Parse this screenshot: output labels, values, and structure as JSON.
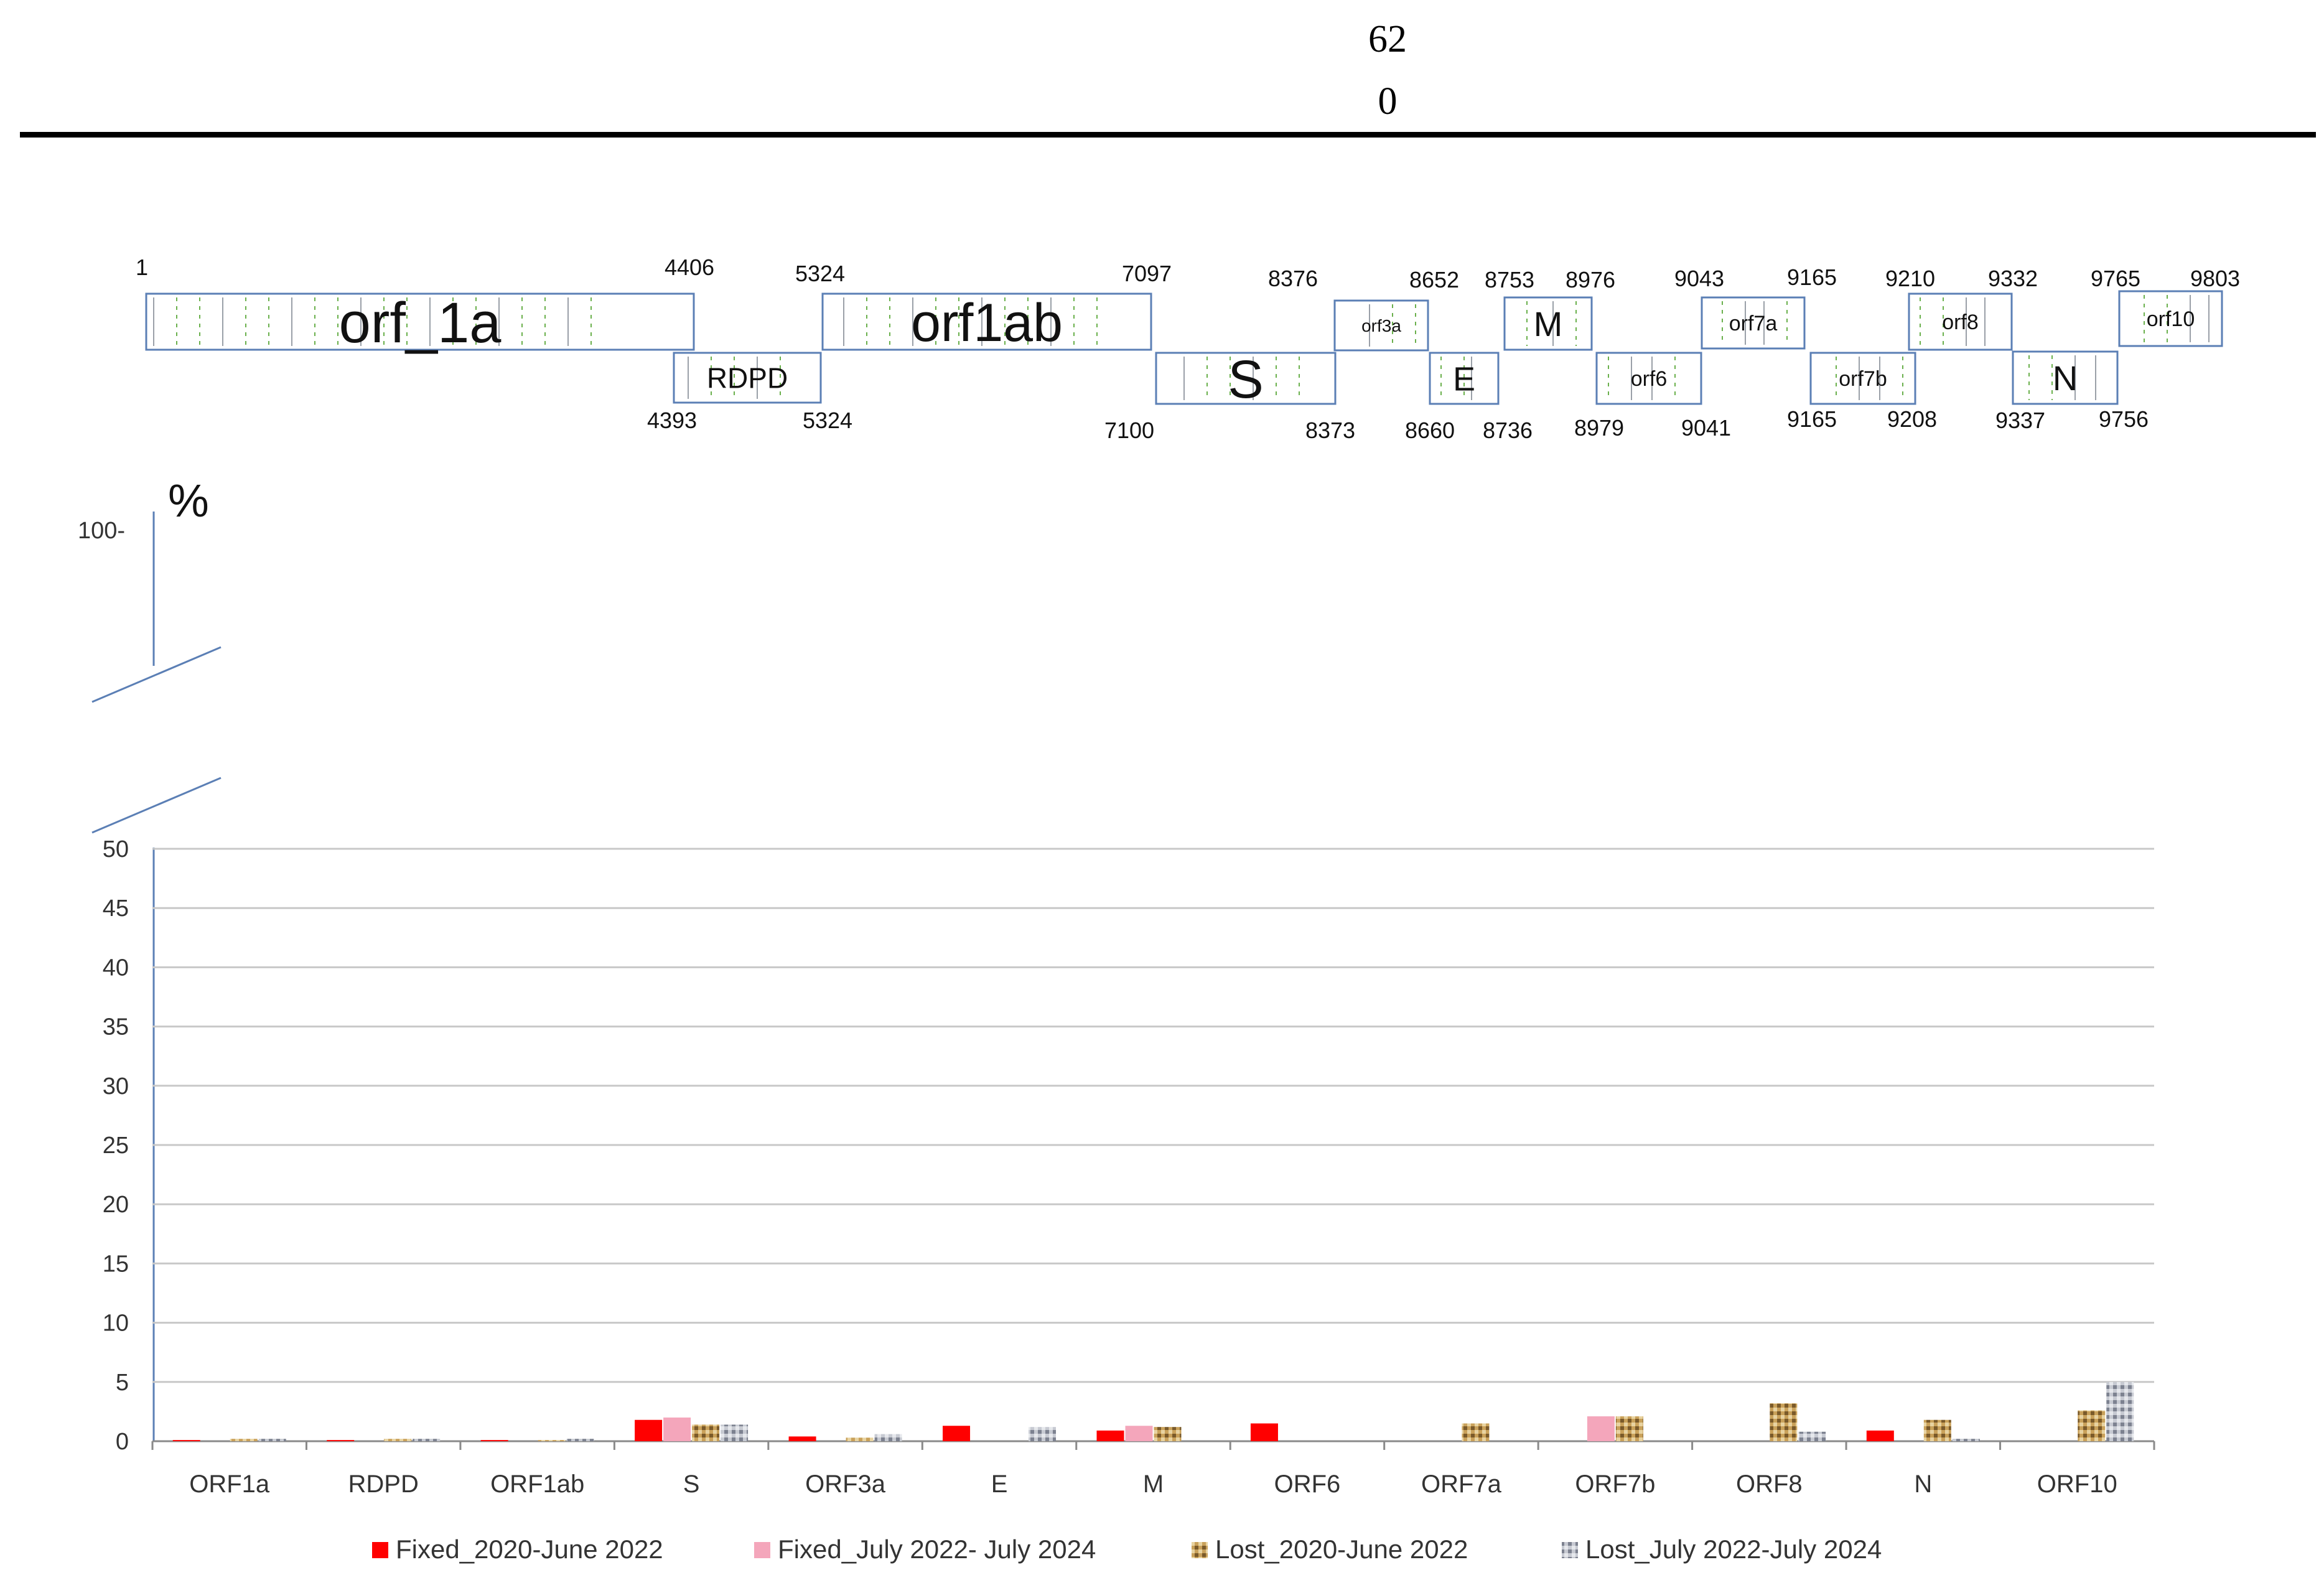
{
  "page_header": {
    "number_top": "62",
    "number_bottom": "0"
  },
  "genome_map": {
    "genes": [
      {
        "label": "orf_1a",
        "start": "1",
        "end": "4406"
      },
      {
        "label": "RDPD",
        "start": "4393",
        "end": "5324"
      },
      {
        "label": "orf1ab",
        "start": "5324",
        "end": "7097"
      },
      {
        "label": "S",
        "start": "7100",
        "end": "8373"
      },
      {
        "label": "orf3a",
        "start": "8376",
        "end": "8652"
      },
      {
        "label": "E",
        "start": "8660",
        "end": "8736"
      },
      {
        "label": "M",
        "start": "8753",
        "end": "8976"
      },
      {
        "label": "orf6",
        "start": "8979",
        "end": "9041"
      },
      {
        "label": "orf7a",
        "start": "9043",
        "end": "9165"
      },
      {
        "label": "orf7b",
        "start": "9165",
        "end": "9208"
      },
      {
        "label": "orf8",
        "start": "9210",
        "end": "9332"
      },
      {
        "label": "N",
        "start": "9337",
        "end": "9756"
      },
      {
        "label": "orf10",
        "start": "9765",
        "end": "9803"
      }
    ]
  },
  "chart_data": {
    "type": "bar",
    "ylabel": "%",
    "upper_tick": "100-",
    "axis_break": true,
    "ylim": [
      0,
      50
    ],
    "yticks": [
      "0",
      "5",
      "10",
      "15",
      "20",
      "25",
      "30",
      "35",
      "40",
      "45",
      "50"
    ],
    "grid": true,
    "legend_position": "bottom",
    "categories": [
      "ORF1a",
      "RDPD",
      "ORF1ab",
      "S",
      "ORF3a",
      "E",
      "M",
      "ORF6",
      "ORF7a",
      "ORF7b",
      "ORF8",
      "N",
      "ORF10"
    ],
    "series": [
      {
        "name": "Fixed_2020-June 2022",
        "color": "#ff0000",
        "values": [
          0.1,
          0.1,
          0.1,
          1.8,
          0.4,
          1.3,
          0.9,
          1.5,
          0,
          0,
          0,
          0.9,
          0
        ]
      },
      {
        "name": "Fixed_July 2022- July 2024",
        "color": "#f4a6bb",
        "values": [
          0,
          0,
          0,
          2.0,
          0,
          0,
          1.3,
          0,
          0,
          2.1,
          0,
          0,
          0
        ]
      },
      {
        "name": "Lost_2020-June 2022",
        "color": "#c9a15a",
        "values": [
          0.2,
          0.2,
          0.1,
          1.4,
          0.3,
          0,
          1.2,
          0,
          1.5,
          2.1,
          3.2,
          1.8,
          2.6
        ]
      },
      {
        "name": "Lost_July 2022-July 2024",
        "color": "#b8bcc6",
        "values": [
          0.2,
          0.2,
          0.2,
          1.4,
          0.6,
          1.2,
          0,
          0,
          0,
          0,
          0.8,
          0.2,
          5.0
        ]
      }
    ]
  }
}
